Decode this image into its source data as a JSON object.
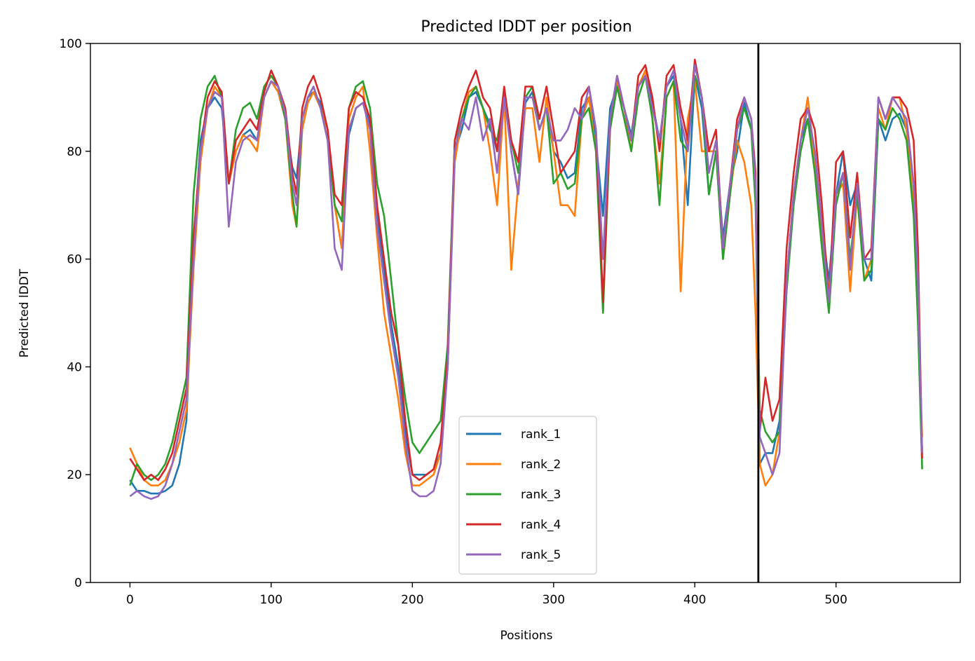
{
  "chart_data": {
    "type": "line",
    "title": "Predicted lDDT per position",
    "xlabel": "Positions",
    "ylabel": "Predicted lDDT",
    "xlim": [
      -28,
      588
    ],
    "ylim": [
      0,
      100
    ],
    "xticks": [
      0,
      100,
      200,
      300,
      400,
      500
    ],
    "yticks": [
      0,
      20,
      40,
      60,
      80,
      100
    ],
    "grid": false,
    "legend_position": "lower center",
    "chain_boundary_x": 445,
    "series": [
      {
        "name": "rank_1",
        "color": "#1f77b4",
        "x": [
          0,
          5,
          10,
          15,
          20,
          25,
          30,
          35,
          40,
          45,
          50,
          55,
          60,
          65,
          70,
          75,
          80,
          85,
          90,
          95,
          100,
          105,
          110,
          115,
          118,
          122,
          126,
          130,
          135,
          140,
          145,
          150,
          155,
          160,
          165,
          170,
          175,
          180,
          185,
          190,
          195,
          200,
          205,
          210,
          215,
          220,
          225,
          230,
          235,
          240,
          245,
          250,
          255,
          260,
          265,
          270,
          275,
          280,
          285,
          290,
          295,
          300,
          305,
          310,
          315,
          320,
          325,
          330,
          335,
          340,
          345,
          350,
          355,
          360,
          365,
          370,
          375,
          380,
          385,
          390,
          395,
          400,
          405,
          410,
          415,
          420,
          425,
          430,
          435,
          440,
          443,
          446,
          450,
          455,
          460,
          465,
          470,
          475,
          480,
          485,
          490,
          495,
          500,
          505,
          510,
          515,
          520,
          525,
          530,
          535,
          540,
          545,
          550,
          555,
          558,
          561
        ],
        "values": [
          19,
          17,
          17,
          16.5,
          16.5,
          17,
          18,
          22,
          30,
          62,
          82,
          88,
          90,
          88,
          74,
          80,
          83,
          84,
          82,
          90,
          93,
          91,
          86,
          77,
          75,
          86,
          90,
          91,
          89,
          84,
          70,
          62,
          83,
          88,
          89,
          85,
          68,
          58,
          48,
          40,
          28,
          20,
          20,
          20,
          21,
          24,
          40,
          80,
          84,
          90,
          91,
          88,
          85,
          80,
          91,
          80,
          72,
          89,
          91,
          84,
          88,
          80,
          78,
          75,
          76,
          88,
          90,
          82,
          68,
          88,
          92,
          88,
          83,
          92,
          95,
          89,
          82,
          92,
          94,
          86,
          70,
          94,
          88,
          72,
          80,
          64,
          74,
          80,
          89,
          84,
          72,
          22,
          24,
          24,
          30,
          56,
          72,
          82,
          86,
          80,
          66,
          56,
          72,
          80,
          70,
          74,
          60,
          56,
          86,
          82,
          86,
          87,
          84,
          70,
          54,
          24
        ]
      },
      {
        "name": "rank_2",
        "color": "#ff7f0e",
        "x": [
          0,
          5,
          10,
          15,
          20,
          25,
          30,
          35,
          40,
          45,
          50,
          55,
          60,
          65,
          70,
          75,
          80,
          85,
          90,
          95,
          100,
          105,
          110,
          115,
          118,
          122,
          126,
          130,
          135,
          140,
          145,
          150,
          155,
          160,
          165,
          170,
          175,
          180,
          185,
          190,
          195,
          200,
          205,
          210,
          215,
          220,
          225,
          230,
          235,
          240,
          245,
          250,
          255,
          260,
          265,
          270,
          275,
          280,
          285,
          290,
          295,
          300,
          305,
          310,
          315,
          320,
          325,
          330,
          335,
          340,
          345,
          350,
          355,
          360,
          365,
          370,
          375,
          380,
          385,
          390,
          395,
          400,
          405,
          410,
          415,
          420,
          425,
          430,
          435,
          440,
          443,
          446,
          450,
          455,
          460,
          465,
          470,
          475,
          480,
          485,
          490,
          495,
          500,
          505,
          510,
          515,
          520,
          525,
          530,
          535,
          540,
          545,
          550,
          555,
          558,
          561
        ],
        "values": [
          25,
          22,
          19,
          18,
          18,
          19,
          22,
          26,
          32,
          58,
          78,
          88,
          92,
          90,
          74,
          80,
          83,
          82,
          80,
          90,
          93,
          91,
          86,
          70,
          66,
          84,
          89,
          91,
          88,
          84,
          70,
          62,
          86,
          90,
          92,
          80,
          64,
          50,
          42,
          34,
          24,
          18,
          18,
          19,
          20,
          24,
          40,
          78,
          86,
          91,
          92,
          88,
          80,
          70,
          90,
          58,
          74,
          88,
          88,
          78,
          90,
          80,
          70,
          70,
          68,
          86,
          90,
          80,
          60,
          84,
          93,
          88,
          80,
          92,
          95,
          86,
          74,
          90,
          93,
          54,
          86,
          93,
          80,
          80,
          80,
          60,
          72,
          82,
          78,
          70,
          50,
          22,
          18,
          20,
          28,
          56,
          72,
          82,
          90,
          78,
          64,
          54,
          72,
          74,
          54,
          72,
          56,
          60,
          88,
          84,
          90,
          90,
          84,
          70,
          52,
          27
        ]
      },
      {
        "name": "rank_3",
        "color": "#2ca02c",
        "x": [
          0,
          5,
          10,
          15,
          20,
          25,
          30,
          35,
          40,
          45,
          50,
          55,
          60,
          65,
          70,
          75,
          80,
          85,
          90,
          95,
          100,
          105,
          110,
          115,
          118,
          122,
          126,
          130,
          135,
          140,
          145,
          150,
          155,
          160,
          165,
          170,
          175,
          180,
          185,
          190,
          195,
          200,
          205,
          210,
          215,
          220,
          225,
          230,
          235,
          240,
          245,
          250,
          255,
          260,
          265,
          270,
          275,
          280,
          285,
          290,
          295,
          300,
          305,
          310,
          315,
          320,
          325,
          330,
          335,
          340,
          345,
          350,
          355,
          360,
          365,
          370,
          375,
          380,
          385,
          390,
          395,
          400,
          405,
          410,
          415,
          420,
          425,
          430,
          435,
          440,
          443,
          446,
          450,
          455,
          460,
          465,
          470,
          475,
          480,
          485,
          490,
          495,
          500,
          505,
          510,
          515,
          520,
          525,
          530,
          535,
          540,
          545,
          550,
          555,
          558,
          561
        ],
        "values": [
          18,
          22,
          20,
          19,
          20,
          22,
          26,
          32,
          38,
          72,
          86,
          92,
          94,
          90,
          74,
          84,
          88,
          89,
          86,
          92,
          94,
          92,
          86,
          72,
          66,
          86,
          90,
          92,
          88,
          82,
          70,
          67,
          88,
          92,
          93,
          88,
          74,
          68,
          56,
          44,
          34,
          26,
          24,
          26,
          28,
          30,
          44,
          82,
          86,
          90,
          92,
          88,
          84,
          82,
          90,
          82,
          76,
          90,
          92,
          84,
          88,
          74,
          76,
          73,
          74,
          86,
          88,
          80,
          50,
          84,
          92,
          86,
          80,
          90,
          94,
          86,
          70,
          90,
          93,
          82,
          80,
          94,
          90,
          72,
          80,
          60,
          72,
          84,
          88,
          84,
          70,
          32,
          28,
          26,
          28,
          54,
          70,
          80,
          86,
          76,
          62,
          50,
          70,
          76,
          60,
          72,
          56,
          58,
          86,
          84,
          88,
          86,
          82,
          68,
          48,
          21
        ]
      },
      {
        "name": "rank_4",
        "color": "#d62728",
        "x": [
          0,
          5,
          10,
          15,
          20,
          25,
          30,
          35,
          40,
          45,
          50,
          55,
          60,
          65,
          70,
          75,
          80,
          85,
          90,
          95,
          100,
          105,
          110,
          115,
          118,
          122,
          126,
          130,
          135,
          140,
          145,
          150,
          155,
          160,
          165,
          170,
          175,
          180,
          185,
          190,
          195,
          200,
          205,
          210,
          215,
          220,
          225,
          230,
          235,
          240,
          245,
          250,
          255,
          260,
          265,
          270,
          275,
          280,
          285,
          290,
          295,
          300,
          305,
          310,
          315,
          320,
          325,
          330,
          335,
          340,
          345,
          350,
          355,
          360,
          365,
          370,
          375,
          380,
          385,
          390,
          395,
          400,
          405,
          410,
          415,
          420,
          425,
          430,
          435,
          440,
          443,
          446,
          450,
          455,
          460,
          465,
          470,
          475,
          480,
          485,
          490,
          495,
          500,
          505,
          510,
          515,
          520,
          525,
          530,
          535,
          540,
          545,
          550,
          555,
          558,
          561
        ],
        "values": [
          23,
          21,
          19,
          20,
          19,
          21,
          24,
          30,
          36,
          64,
          80,
          90,
          93,
          91,
          74,
          82,
          84,
          86,
          84,
          91,
          95,
          92,
          88,
          76,
          72,
          88,
          92,
          94,
          90,
          84,
          72,
          70,
          88,
          91,
          90,
          86,
          70,
          60,
          50,
          44,
          30,
          20,
          19,
          20,
          21,
          26,
          42,
          82,
          88,
          92,
          95,
          90,
          88,
          80,
          92,
          82,
          78,
          92,
          92,
          86,
          92,
          84,
          76,
          78,
          80,
          90,
          92,
          84,
          52,
          86,
          94,
          88,
          82,
          94,
          96,
          90,
          80,
          94,
          96,
          88,
          82,
          97,
          90,
          80,
          84,
          62,
          74,
          86,
          90,
          86,
          76,
          28,
          38,
          30,
          34,
          62,
          76,
          86,
          88,
          84,
          70,
          52,
          78,
          80,
          64,
          76,
          60,
          62,
          90,
          86,
          90,
          90,
          88,
          82,
          62,
          23
        ]
      },
      {
        "name": "rank_5",
        "color": "#9467bd",
        "x": [
          0,
          5,
          10,
          15,
          20,
          25,
          30,
          35,
          40,
          45,
          50,
          55,
          60,
          65,
          70,
          75,
          80,
          85,
          90,
          95,
          100,
          105,
          110,
          115,
          118,
          122,
          126,
          130,
          135,
          140,
          145,
          150,
          155,
          160,
          165,
          170,
          175,
          180,
          185,
          190,
          195,
          200,
          205,
          210,
          215,
          220,
          225,
          230,
          235,
          240,
          245,
          250,
          255,
          260,
          265,
          270,
          275,
          280,
          285,
          290,
          295,
          300,
          305,
          310,
          315,
          320,
          325,
          330,
          335,
          340,
          345,
          350,
          355,
          360,
          365,
          370,
          375,
          380,
          385,
          390,
          395,
          400,
          405,
          410,
          415,
          420,
          425,
          430,
          435,
          440,
          443,
          446,
          450,
          455,
          460,
          465,
          470,
          475,
          480,
          485,
          490,
          495,
          500,
          505,
          510,
          515,
          520,
          525,
          530,
          535,
          540,
          545,
          550,
          555,
          558,
          561
        ],
        "values": [
          16,
          17,
          16,
          15.5,
          16,
          18,
          22,
          28,
          34,
          60,
          80,
          88,
          91,
          90,
          66,
          78,
          82,
          83,
          82,
          90,
          93,
          92,
          87,
          74,
          70,
          86,
          90,
          92,
          88,
          82,
          62,
          58,
          84,
          88,
          89,
          84,
          66,
          56,
          46,
          38,
          26,
          17,
          16,
          16,
          17,
          22,
          40,
          80,
          86,
          84,
          90,
          82,
          86,
          76,
          90,
          80,
          72,
          90,
          90,
          84,
          88,
          82,
          82,
          84,
          88,
          86,
          92,
          84,
          60,
          86,
          94,
          88,
          82,
          92,
          94,
          88,
          82,
          92,
          95,
          86,
          80,
          96,
          90,
          76,
          82,
          62,
          74,
          84,
          90,
          86,
          74,
          27,
          24,
          20,
          24,
          56,
          72,
          82,
          88,
          80,
          66,
          52,
          72,
          76,
          58,
          74,
          60,
          60,
          90,
          86,
          90,
          88,
          86,
          74,
          56,
          24
        ]
      }
    ]
  }
}
